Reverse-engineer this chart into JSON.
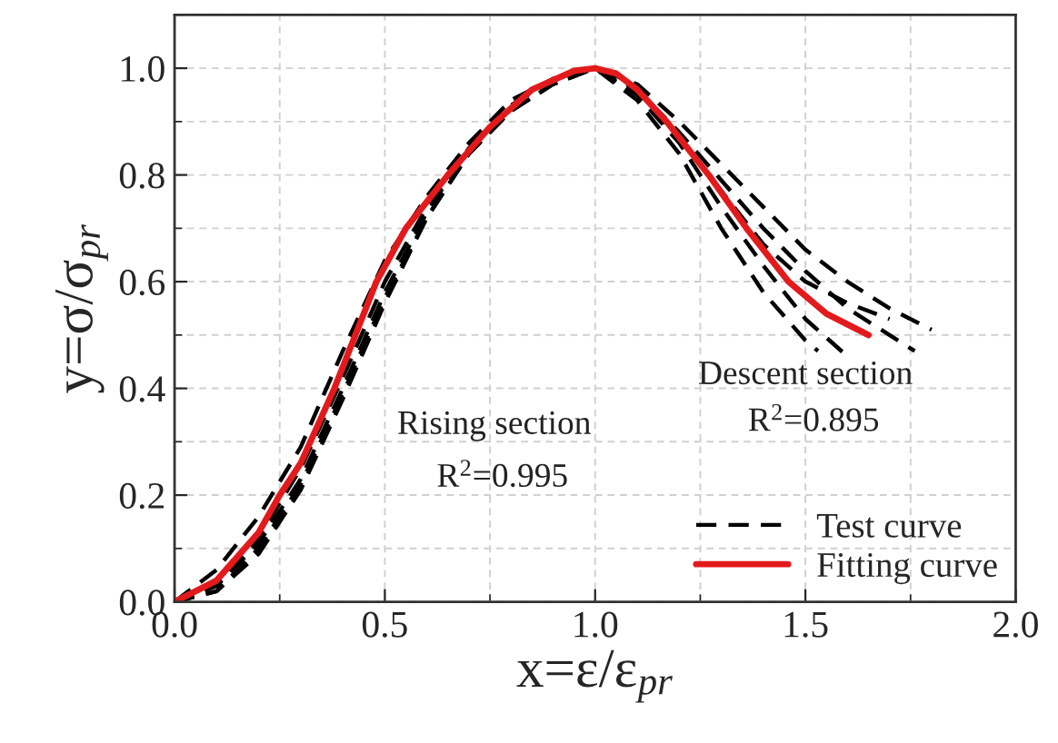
{
  "chart_data": {
    "type": "line",
    "xlabel": "x=ε/ε$_{pr}$",
    "ylabel": "y=σ/σ$_{pr}$",
    "xlim": [
      0,
      2.0
    ],
    "ylim": [
      0,
      1.1
    ],
    "xticks": [
      {
        "value": 0,
        "label": "0.0"
      },
      {
        "value": 0.5,
        "label": "0.5"
      },
      {
        "value": 1.0,
        "label": "1.0"
      },
      {
        "value": 1.5,
        "label": "1.5"
      },
      {
        "value": 2.0,
        "label": "2.0"
      }
    ],
    "yticks": [
      {
        "value": 0,
        "label": "0.0"
      },
      {
        "value": 0.2,
        "label": "0.2"
      },
      {
        "value": 0.4,
        "label": "0.4"
      },
      {
        "value": 0.6,
        "label": "0.6"
      },
      {
        "value": 0.8,
        "label": "0.8"
      },
      {
        "value": 1.0,
        "label": "1.0"
      }
    ],
    "grid": true,
    "legend": "bottom right",
    "annotations": [
      "Rising section",
      "R$^{2}$=0.995",
      "Descent section",
      "R$^{2}$=0.895"
    ],
    "series": [
      {
        "name": "Test curve",
        "color": "#000000",
        "line_style": "dashed",
        "x": [
          0,
          0.1,
          0.2,
          0.3,
          0.4,
          0.5,
          0.6,
          0.7,
          0.8,
          0.9,
          1.0,
          1.1,
          1.2,
          1.3,
          1.4,
          1.5,
          1.6,
          1.7,
          1.8
        ],
        "values": [
          0,
          0.06,
          0.16,
          0.29,
          0.47,
          0.64,
          0.76,
          0.86,
          0.94,
          0.98,
          1.0,
          0.97,
          0.9,
          0.82,
          0.74,
          0.66,
          0.6,
          0.55,
          0.51
        ]
      },
      {
        "color": "#000000",
        "line_style": "dashed",
        "x": [
          0,
          0.1,
          0.2,
          0.3,
          0.4,
          0.5,
          0.6,
          0.7,
          0.8,
          0.9,
          1.0,
          1.1,
          1.2,
          1.3,
          1.4,
          1.5,
          1.6,
          1.7,
          1.76
        ],
        "values": [
          0,
          0.02,
          0.09,
          0.21,
          0.38,
          0.56,
          0.72,
          0.84,
          0.92,
          0.97,
          1.0,
          0.96,
          0.88,
          0.79,
          0.7,
          0.62,
          0.55,
          0.5,
          0.47
        ]
      },
      {
        "color": "#000000",
        "line_style": "dashed",
        "x": [
          0,
          0.1,
          0.2,
          0.3,
          0.4,
          0.5,
          0.6,
          0.7,
          0.8,
          0.9,
          1.0,
          1.1,
          1.2,
          1.3,
          1.4,
          1.5,
          1.6
        ],
        "values": [
          0,
          0.03,
          0.11,
          0.23,
          0.4,
          0.58,
          0.73,
          0.85,
          0.93,
          0.98,
          1.0,
          0.95,
          0.86,
          0.74,
          0.63,
          0.53,
          0.46
        ]
      },
      {
        "color": "#000000",
        "line_style": "dashed",
        "x": [
          0,
          0.1,
          0.2,
          0.3,
          0.4,
          0.5,
          0.6,
          0.7,
          0.8,
          0.9,
          1.0,
          1.1,
          1.2,
          1.3,
          1.4,
          1.5,
          1.53
        ],
        "values": [
          0,
          0.02,
          0.1,
          0.22,
          0.39,
          0.57,
          0.72,
          0.84,
          0.92,
          0.97,
          1.0,
          0.94,
          0.84,
          0.7,
          0.58,
          0.49,
          0.47
        ]
      },
      {
        "color": "#000000",
        "line_style": "dashed",
        "x": [
          0,
          0.1,
          0.2,
          0.3,
          0.4,
          0.5,
          0.6,
          0.7,
          0.8,
          0.9,
          1.0,
          1.1,
          1.2,
          1.3,
          1.4,
          1.5,
          1.6,
          1.7
        ],
        "values": [
          0,
          0.03,
          0.12,
          0.25,
          0.42,
          0.6,
          0.74,
          0.85,
          0.93,
          0.98,
          1.0,
          0.95,
          0.87,
          0.77,
          0.67,
          0.6,
          0.56,
          0.53
        ]
      },
      {
        "name": "Fitting curve",
        "color": "#e31a1c",
        "line_style": "solid",
        "x": [
          0,
          0.1,
          0.2,
          0.25,
          0.3,
          0.38,
          0.48,
          0.55,
          0.65,
          0.75,
          0.85,
          0.95,
          1.0,
          1.05,
          1.1,
          1.17,
          1.27,
          1.36,
          1.46,
          1.55,
          1.65
        ],
        "values": [
          0,
          0.04,
          0.13,
          0.2,
          0.26,
          0.4,
          0.6,
          0.7,
          0.8,
          0.89,
          0.96,
          0.995,
          1.0,
          0.99,
          0.96,
          0.9,
          0.8,
          0.7,
          0.6,
          0.54,
          0.5
        ]
      }
    ]
  }
}
